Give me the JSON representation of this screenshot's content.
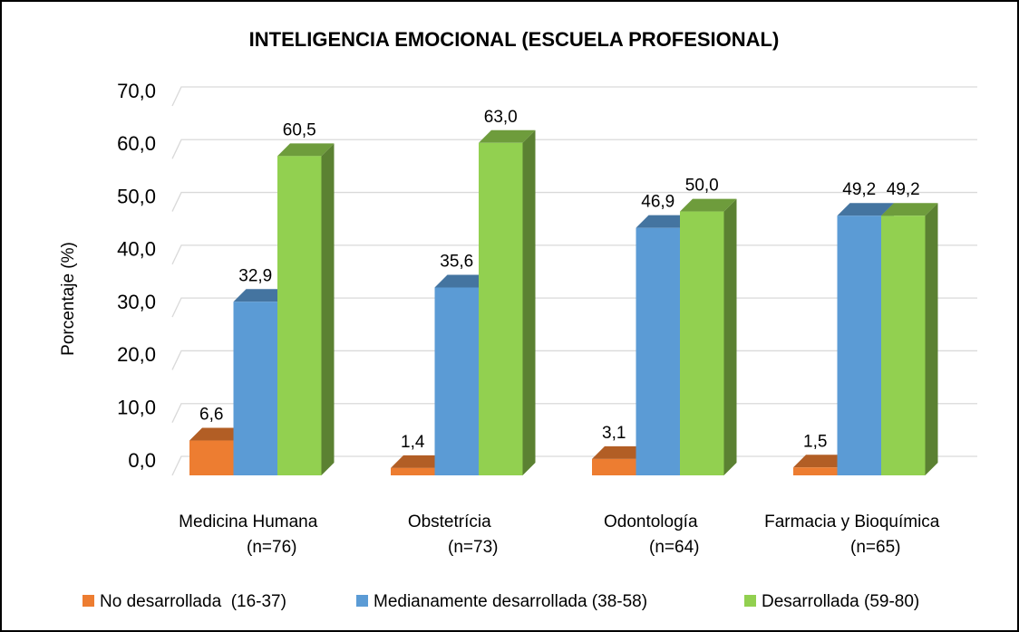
{
  "chart_data": {
    "type": "bar3d",
    "title": "INTELIGENCIA EMOCIONAL (ESCUELA PROFESIONAL)",
    "y_label": "Porcentaje (%)",
    "categories": [
      [
        "Medicina Humana",
        "(n=76)"
      ],
      [
        "Obstetrícia",
        "(n=73)"
      ],
      [
        "Odontología",
        "(n=64)"
      ],
      [
        "Farmacia y Bioquímica",
        "(n=65)"
      ]
    ],
    "series": [
      {
        "name": "No desarrollada  (16-37)",
        "color": "#ed7d31",
        "values": [
          6.6,
          1.4,
          3.1,
          1.5
        ],
        "value_labels": [
          "6,6",
          "1,4",
          "3,1",
          "1,5"
        ]
      },
      {
        "name": "Medianamente desarrollada (38-58)",
        "color": "#5b9bd5",
        "values": [
          32.9,
          35.6,
          46.9,
          49.2
        ],
        "value_labels": [
          "32,9",
          "35,6",
          "46,9",
          "49,2"
        ]
      },
      {
        "name": "Desarrollada (59-80)",
        "color": "#92d050",
        "values": [
          60.5,
          63.0,
          50.0,
          49.2
        ],
        "value_labels": [
          "60,5",
          "63,0",
          "50,0",
          "49,2"
        ]
      }
    ],
    "ylim": [
      0,
      70
    ],
    "yticks": [
      {
        "value": 0,
        "label": "0,0"
      },
      {
        "value": 10,
        "label": "10,0"
      },
      {
        "value": 20,
        "label": "20,0"
      },
      {
        "value": 30,
        "label": "30,0"
      },
      {
        "value": 40,
        "label": "40,0"
      },
      {
        "value": 50,
        "label": "50,0"
      },
      {
        "value": 60,
        "label": "60,0"
      },
      {
        "value": 70,
        "label": "70,0"
      }
    ],
    "grid": true,
    "legend": "bottom"
  }
}
